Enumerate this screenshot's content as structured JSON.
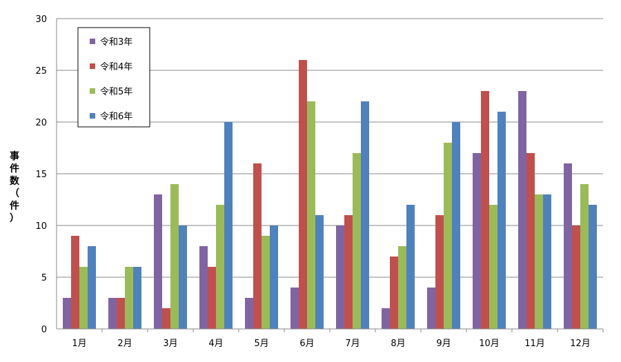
{
  "chart_data": {
    "type": "bar",
    "ylabel": "事件数（件）",
    "ylim": [
      0,
      30
    ],
    "yticks": [
      0,
      5,
      10,
      15,
      20,
      25,
      30
    ],
    "grid": true,
    "legend_position": "top-left",
    "categories": [
      "1月",
      "2月",
      "3月",
      "4月",
      "5月",
      "6月",
      "7月",
      "8月",
      "9月",
      "10月",
      "11月",
      "12月"
    ],
    "series": [
      {
        "name": "令和3年",
        "color": "#8064A2",
        "values": [
          3,
          3,
          13,
          8,
          3,
          4,
          10,
          2,
          4,
          17,
          23,
          16
        ]
      },
      {
        "name": "令和4年",
        "color": "#C0504D",
        "values": [
          9,
          3,
          2,
          6,
          16,
          26,
          11,
          7,
          11,
          23,
          17,
          10
        ]
      },
      {
        "name": "令和5年",
        "color": "#9BBB59",
        "values": [
          6,
          6,
          14,
          12,
          9,
          22,
          17,
          8,
          18,
          12,
          13,
          14
        ]
      },
      {
        "name": "令和6年",
        "color": "#4F81BD",
        "values": [
          8,
          6,
          10,
          20,
          10,
          11,
          22,
          12,
          20,
          21,
          13,
          12
        ]
      }
    ]
  }
}
